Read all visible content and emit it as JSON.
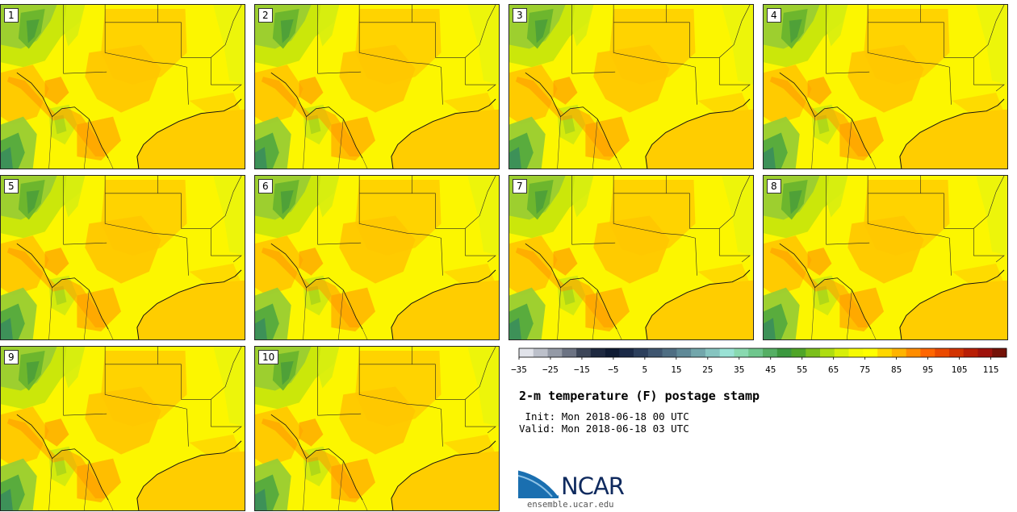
{
  "chart_data": {
    "type": "heatmap",
    "title": "2-m temperature (F) postage stamp",
    "init_label": " Init:",
    "init_time": "Mon 2018-06-18 00 UTC",
    "valid_label": "Valid:",
    "valid_time": "Mon 2018-06-18 03 UTC",
    "members": [
      "1",
      "2",
      "3",
      "4",
      "5",
      "6",
      "7",
      "8",
      "9",
      "10"
    ],
    "colorbar": {
      "min": -35,
      "max": 120,
      "step": 5,
      "tick_labels": [
        "−35",
        "−25",
        "−15",
        "−5",
        "5",
        "15",
        "25",
        "35",
        "45",
        "55",
        "65",
        "75",
        "85",
        "95",
        "105",
        "115"
      ],
      "colors": [
        "#e1e3ea",
        "#bcc0ca",
        "#949aa6",
        "#6c7383",
        "#3d4658",
        "#1e2940",
        "#0f1b33",
        "#1b2a47",
        "#2c3f5c",
        "#3f5670",
        "#4f6e83",
        "#5f8997",
        "#72a6ab",
        "#86c4c0",
        "#9ae2d5",
        "#89d9b0",
        "#6fc68d",
        "#55af64",
        "#3c983f",
        "#4fa528",
        "#7bbf1c",
        "#aedd12",
        "#d7ef0a",
        "#f6fa03",
        "#ffff00",
        "#ffd700",
        "#ffb400",
        "#ff8d00",
        "#ff6600",
        "#ea4a00",
        "#d23300",
        "#b81e05",
        "#9e120c",
        "#741208"
      ]
    }
  },
  "branding": {
    "org": "NCAR",
    "url": "ensemble.ucar.edu"
  }
}
